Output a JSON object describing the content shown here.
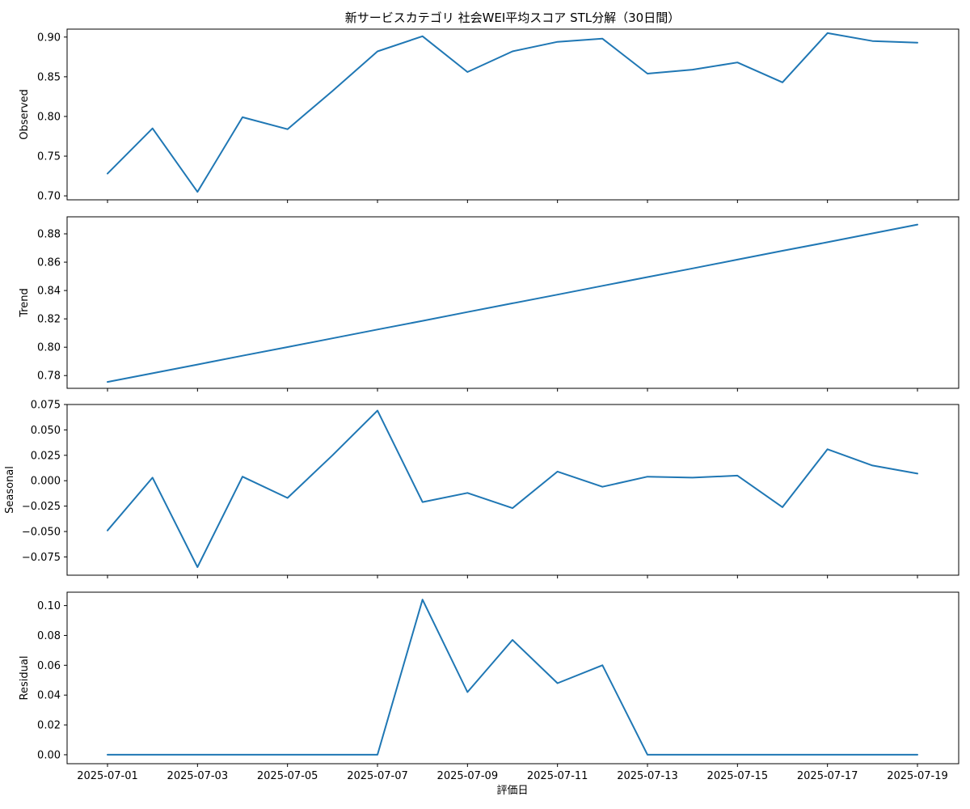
{
  "chart_data": {
    "type": "line",
    "title": "新サービスカテゴリ 社会WEI平均スコア STL分解（30日間）",
    "xlabel": "評価日",
    "line_color": "#1f77b4",
    "x": [
      "2025-07-01",
      "2025-07-02",
      "2025-07-03",
      "2025-07-04",
      "2025-07-05",
      "2025-07-06",
      "2025-07-07",
      "2025-07-08",
      "2025-07-09",
      "2025-07-10",
      "2025-07-11",
      "2025-07-12",
      "2025-07-13",
      "2025-07-14",
      "2025-07-15",
      "2025-07-16",
      "2025-07-17",
      "2025-07-18",
      "2025-07-19"
    ],
    "x_ticks": [
      "2025-07-01",
      "2025-07-03",
      "2025-07-05",
      "2025-07-07",
      "2025-07-09",
      "2025-07-11",
      "2025-07-13",
      "2025-07-15",
      "2025-07-17",
      "2025-07-19"
    ],
    "panels": [
      {
        "ylabel": "Observed",
        "ylim": [
          0.695,
          0.91
        ],
        "yticks": [
          "0.70",
          "0.75",
          "0.80",
          "0.85",
          "0.90"
        ],
        "values": [
          0.728,
          0.785,
          0.705,
          0.799,
          0.784,
          0.832,
          0.882,
          0.901,
          0.856,
          0.882,
          0.894,
          0.898,
          0.854,
          0.859,
          0.868,
          0.843,
          0.905,
          0.895,
          0.893
        ]
      },
      {
        "ylabel": "Trend",
        "ylim": [
          0.771,
          0.892
        ],
        "yticks": [
          "0.78",
          "0.80",
          "0.82",
          "0.84",
          "0.86",
          "0.88"
        ],
        "values": [
          0.7755,
          0.7816,
          0.7878,
          0.794,
          0.8001,
          0.8063,
          0.8125,
          0.8186,
          0.8248,
          0.831,
          0.8371,
          0.8433,
          0.8495,
          0.8556,
          0.8618,
          0.868,
          0.8741,
          0.8803,
          0.8865
        ]
      },
      {
        "ylabel": "Seasonal",
        "ylim": [
          -0.093,
          0.075
        ],
        "yticks": [
          "0.075",
          "0.050",
          "0.025",
          "0.000",
          "−0.025",
          "−0.050",
          "−0.075"
        ],
        "ytick_values": [
          0.075,
          0.05,
          0.025,
          0.0,
          -0.025,
          -0.05,
          -0.075
        ],
        "values": [
          -0.049,
          0.003,
          -0.085,
          0.004,
          -0.017,
          0.025,
          0.069,
          -0.021,
          -0.012,
          -0.027,
          0.009,
          -0.006,
          0.004,
          0.003,
          0.005,
          -0.026,
          0.031,
          0.015,
          0.007
        ]
      },
      {
        "ylabel": "Residual",
        "ylim": [
          -0.006,
          0.109
        ],
        "yticks": [
          "0.00",
          "0.02",
          "0.04",
          "0.06",
          "0.08",
          "0.10"
        ],
        "values": [
          0,
          0,
          0,
          0,
          0,
          0,
          0,
          0.104,
          0.042,
          0.077,
          0.048,
          0.06,
          0,
          0,
          0,
          0,
          0,
          0,
          0
        ]
      }
    ]
  }
}
